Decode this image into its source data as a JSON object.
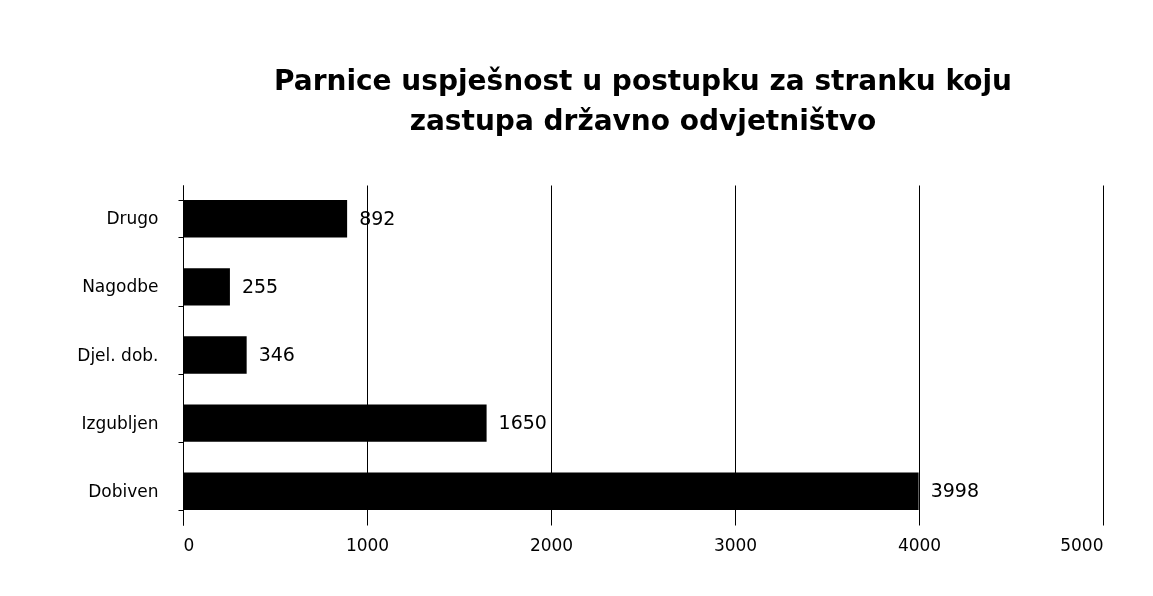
{
  "chart_data": {
    "type": "bar",
    "orientation": "horizontal",
    "title": "Parnice uspješnost u postupku za stranku koju zastupa državno odvjetništvo",
    "categories": [
      "Drugo",
      "Nagodbe",
      "Djel. dob.",
      "Izgubljen",
      "Dobiven"
    ],
    "values": [
      892,
      255,
      346,
      1650,
      3998
    ],
    "color": "#000000",
    "xlim": [
      0,
      5000
    ],
    "xticks": [
      0,
      1000,
      2000,
      3000,
      4000,
      5000
    ],
    "grid": "x",
    "data_labels": true
  }
}
